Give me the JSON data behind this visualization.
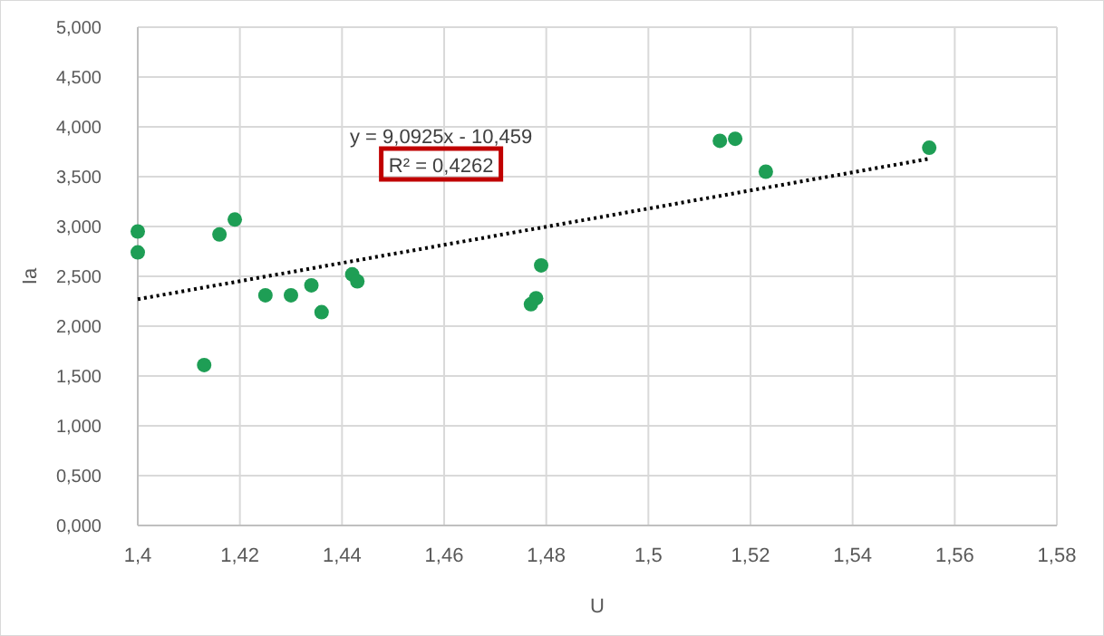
{
  "chart_data": {
    "type": "scatter",
    "xlabel": "U",
    "ylabel": "Ia",
    "annotations": [
      "y = 9,0925x - 10,459",
      "R² = 0,4262"
    ],
    "xlim": [
      1.4,
      1.58
    ],
    "xticks": [
      {
        "value": 1.4,
        "label": "1,4"
      },
      {
        "value": 1.42,
        "label": "1,42"
      },
      {
        "value": 1.44,
        "label": "1,44"
      },
      {
        "value": 1.46,
        "label": "1,46"
      },
      {
        "value": 1.48,
        "label": "1,48"
      },
      {
        "value": 1.5,
        "label": "1,5"
      },
      {
        "value": 1.52,
        "label": "1,52"
      },
      {
        "value": 1.54,
        "label": "1,54"
      },
      {
        "value": 1.56,
        "label": "1,56"
      },
      {
        "value": 1.58,
        "label": "1,58"
      }
    ],
    "ylim": [
      0,
      5
    ],
    "yticks": [
      {
        "value": 0,
        "label": "0,000"
      },
      {
        "value": 0.5,
        "label": "0,500"
      },
      {
        "value": 1,
        "label": "1,000"
      },
      {
        "value": 1.5,
        "label": "1,500"
      },
      {
        "value": 2,
        "label": "2,000"
      },
      {
        "value": 2.5,
        "label": "2,500"
      },
      {
        "value": 3,
        "label": "3,000"
      },
      {
        "value": 3.5,
        "label": "3,500"
      },
      {
        "value": 4,
        "label": "4,000"
      },
      {
        "value": 4.5,
        "label": "4,500"
      },
      {
        "value": 5,
        "label": "5,000"
      }
    ],
    "grid": true,
    "marker": "circle",
    "series": [
      {
        "color": "#1e9e55",
        "x": [
          1.4,
          1.4,
          1.413,
          1.416,
          1.419,
          1.425,
          1.43,
          1.434,
          1.436,
          1.442,
          1.443,
          1.477,
          1.478,
          1.479,
          1.514,
          1.517,
          1.523,
          1.555
        ],
        "values": [
          2.95,
          2.74,
          1.61,
          2.92,
          3.07,
          2.31,
          2.31,
          2.41,
          2.14,
          2.52,
          2.45,
          2.22,
          2.28,
          2.61,
          3.86,
          3.88,
          3.55,
          3.79
        ]
      },
      {
        "type": "line",
        "color": "#000000",
        "line_style": "dotted",
        "marker": "none",
        "x": [
          1.4,
          1.555
        ],
        "values": [
          2.27,
          3.68
        ]
      }
    ]
  }
}
